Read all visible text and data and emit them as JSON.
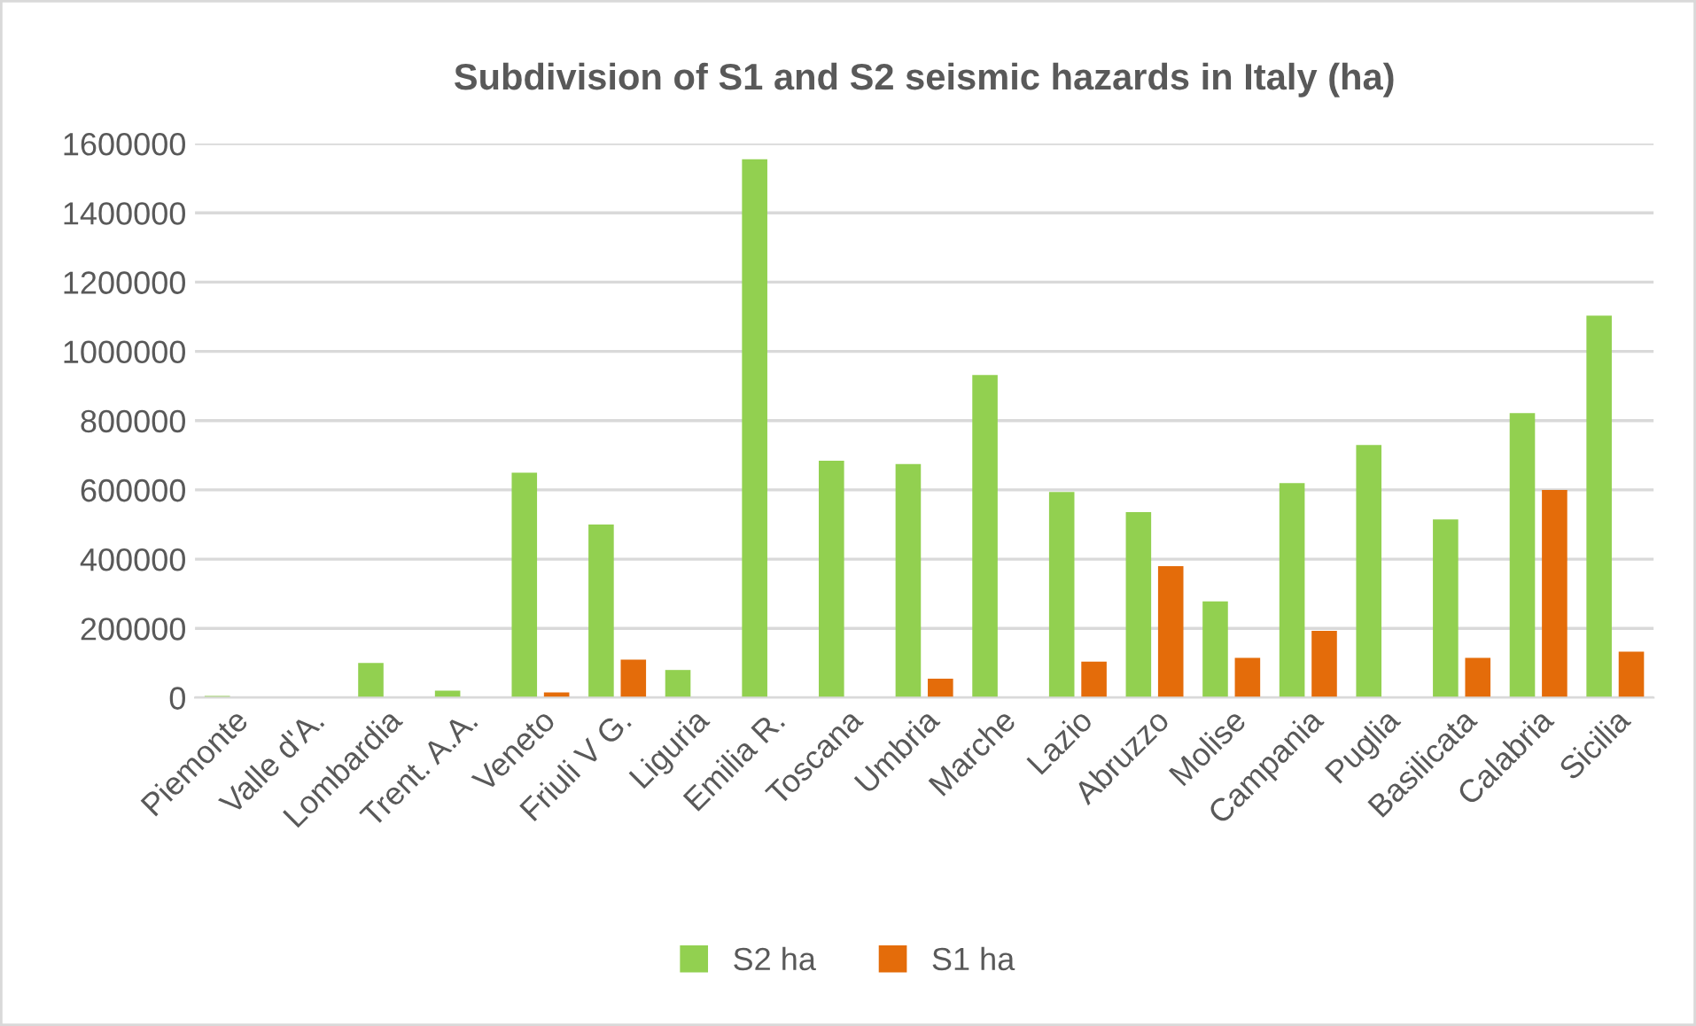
{
  "chart_data": {
    "type": "bar",
    "title": "Subdivision of S1 and S2 seismic hazards in Italy (ha)",
    "categories": [
      "Piemonte",
      "Valle d'A.",
      "Lombardia",
      "Trent. A.A.",
      "Veneto",
      "Friuli V G.",
      "Liguria",
      "Emilia R.",
      "Toscana",
      "Umbria",
      "Marche",
      "Lazio",
      "Abruzzo",
      "Molise",
      "Campania",
      "Puglia",
      "Basilicata",
      "Calabria",
      "Sicilia"
    ],
    "series": [
      {
        "name": "S2 ha",
        "color": "#92d050",
        "values": [
          5000,
          0,
          100000,
          20000,
          650000,
          500000,
          80000,
          1555000,
          684000,
          675000,
          932000,
          594000,
          536000,
          278000,
          620000,
          730000,
          515000,
          822000,
          1103000
        ]
      },
      {
        "name": "S1 ha",
        "color": "#e46c0a",
        "values": [
          0,
          0,
          0,
          0,
          15000,
          110000,
          0,
          0,
          0,
          55000,
          null,
          104000,
          380000,
          115000,
          193000,
          0,
          115000,
          600000,
          133000
        ]
      }
    ],
    "ylim": [
      0,
      1600000
    ],
    "yticks": [
      0,
      200000,
      400000,
      600000,
      800000,
      1000000,
      1200000,
      1400000,
      1600000
    ],
    "grid": "y",
    "legend": "bottom"
  }
}
